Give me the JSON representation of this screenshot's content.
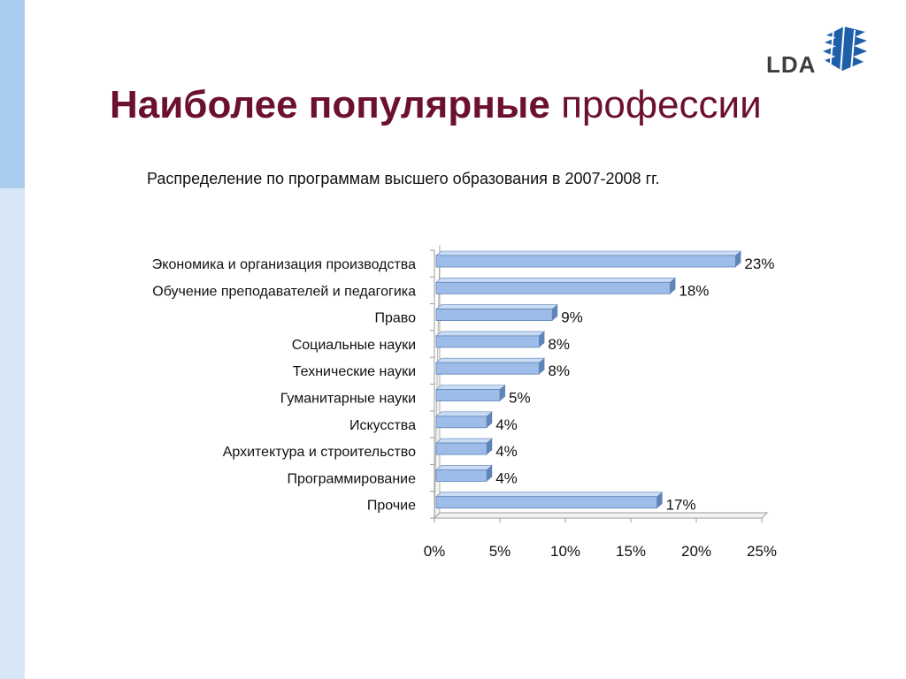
{
  "slide": {
    "title_bold": "Наиболее популярные",
    "title_rest": "профессии",
    "logo_text": "LDA",
    "colors": {
      "title": "#6b1030",
      "side_strip": "#d6e6f7",
      "side_strip_accent": "#a9cdee",
      "bar_fill": "#9dbce8",
      "bar_edge": "#5f84b8",
      "logo_blue": "#1f5faa"
    },
    "icons": [
      "lda-globe-icon"
    ]
  },
  "chart_data": {
    "type": "bar",
    "orientation": "horizontal",
    "style": "3d",
    "title": "Распределение по программам высшего образования в 2007-2008 гг.",
    "categories": [
      "Экономика и организация производства",
      "Обучение преподавателей и педагогика",
      "Право",
      "Социальные науки",
      "Технические науки",
      "Гуманитарные науки",
      "Искусства",
      "Архитектура и строительство",
      "Программирование",
      "Прочие"
    ],
    "values": [
      23,
      18,
      9,
      8,
      8,
      5,
      4,
      4,
      4,
      17
    ],
    "data_labels": [
      "23%",
      "18%",
      "9%",
      "8%",
      "8%",
      "5%",
      "4%",
      "4%",
      "4%",
      "17%"
    ],
    "xlim": [
      0,
      25
    ],
    "xticks": [
      0,
      5,
      10,
      15,
      20,
      25
    ],
    "xtick_labels": [
      "0%",
      "5%",
      "10%",
      "15%",
      "20%",
      "25%"
    ],
    "grid": false,
    "legend": "none"
  }
}
